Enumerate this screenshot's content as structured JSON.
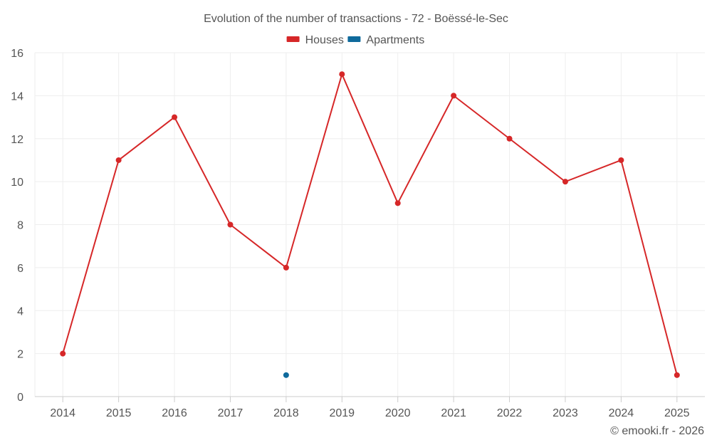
{
  "chart_data": {
    "type": "line",
    "title": "Evolution of the number of transactions - 72 - Boëssé-le-Sec",
    "categories": [
      "2014",
      "2015",
      "2016",
      "2017",
      "2018",
      "2019",
      "2020",
      "2021",
      "2022",
      "2023",
      "2024",
      "2025"
    ],
    "series": [
      {
        "name": "Houses",
        "color": "#d62728",
        "values": [
          2,
          11,
          13,
          8,
          6,
          15,
          9,
          14,
          12,
          10,
          11,
          1
        ]
      },
      {
        "name": "Apartments",
        "color": "#0f6a9c",
        "values": [
          null,
          null,
          null,
          null,
          1,
          null,
          null,
          null,
          null,
          null,
          null,
          null
        ]
      }
    ],
    "ylim": [
      0,
      16
    ],
    "yticks": [
      0,
      2,
      4,
      6,
      8,
      10,
      12,
      14,
      16
    ],
    "grid": true,
    "legend_position": "top-center",
    "xlabel": "",
    "ylabel": ""
  },
  "credit": "© emooki.fr - 2026"
}
